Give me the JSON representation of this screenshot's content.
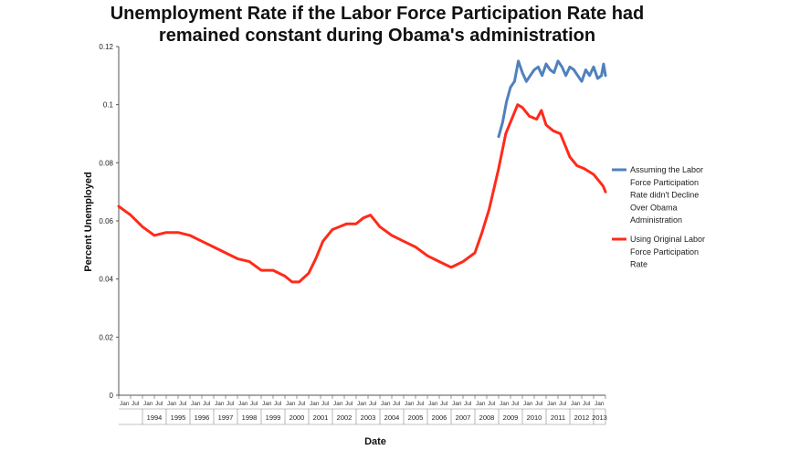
{
  "chart_data": {
    "type": "line",
    "title_lines": [
      "Unemployment Rate if the Labor Force Participation Rate had",
      "remained constant during Obama's administration"
    ],
    "xlabel": "Date",
    "ylabel": "Percent Unemployed",
    "ylim": [
      0,
      0.12
    ],
    "y_ticks": [
      "0",
      "0.02",
      "0.04",
      "0.06",
      "0.08",
      "0.1",
      "0.12"
    ],
    "x_range": [
      1993.0,
      2013.5
    ],
    "month_tick_labels": [
      "Jan",
      "Jul"
    ],
    "years": [
      "1994",
      "1995",
      "1996",
      "1997",
      "1998",
      "1999",
      "2000",
      "2001",
      "2002",
      "2003",
      "2004",
      "2005",
      "2006",
      "2007",
      "2008",
      "2009",
      "2010",
      "2011",
      "2012",
      "2013"
    ],
    "grid": false,
    "legend_position": "right",
    "series": [
      {
        "name": "Assuming the Labor Force Participation Rate didn't Decline Over Obama Administration",
        "legend_lines": [
          "Assuming the Labor",
          "Force Participation",
          "Rate didn't Decline",
          "Over Obama",
          "Administration"
        ],
        "color": "#4f81bd",
        "x": [
          2009.0,
          2009.17,
          2009.33,
          2009.5,
          2009.67,
          2009.83,
          2010.0,
          2010.17,
          2010.33,
          2010.5,
          2010.67,
          2010.83,
          2011.0,
          2011.17,
          2011.33,
          2011.5,
          2011.67,
          2011.83,
          2012.0,
          2012.17,
          2012.33,
          2012.5,
          2012.67,
          2012.83,
          2013.0,
          2013.17,
          2013.33,
          2013.42,
          2013.5
        ],
        "y": [
          0.089,
          0.094,
          0.101,
          0.106,
          0.108,
          0.115,
          0.111,
          0.108,
          0.11,
          0.112,
          0.113,
          0.11,
          0.114,
          0.112,
          0.111,
          0.115,
          0.113,
          0.11,
          0.113,
          0.112,
          0.11,
          0.108,
          0.112,
          0.11,
          0.113,
          0.109,
          0.11,
          0.114,
          0.11
        ]
      },
      {
        "name": "Using Original Labor Force Participation Rate",
        "legend_lines": [
          "Using Original Labor",
          "Force Participation",
          "Rate"
        ],
        "color": "#ff2a1a",
        "x": [
          1993.0,
          1993.5,
          1994.0,
          1994.5,
          1995.0,
          1995.5,
          1996.0,
          1996.5,
          1997.0,
          1997.5,
          1998.0,
          1998.5,
          1999.0,
          1999.5,
          2000.0,
          2000.3,
          2000.6,
          2001.0,
          2001.3,
          2001.6,
          2002.0,
          2002.3,
          2002.6,
          2003.0,
          2003.3,
          2003.6,
          2004.0,
          2004.5,
          2005.0,
          2005.5,
          2006.0,
          2006.5,
          2007.0,
          2007.5,
          2008.0,
          2008.3,
          2008.6,
          2009.0,
          2009.3,
          2009.6,
          2009.8,
          2010.0,
          2010.3,
          2010.6,
          2010.8,
          2011.0,
          2011.3,
          2011.6,
          2011.8,
          2012.0,
          2012.3,
          2012.6,
          2012.8,
          2013.0,
          2013.2,
          2013.4,
          2013.5
        ],
        "y": [
          0.065,
          0.062,
          0.058,
          0.055,
          0.056,
          0.056,
          0.055,
          0.053,
          0.051,
          0.049,
          0.047,
          0.046,
          0.043,
          0.043,
          0.041,
          0.039,
          0.039,
          0.042,
          0.047,
          0.053,
          0.057,
          0.058,
          0.059,
          0.059,
          0.061,
          0.062,
          0.058,
          0.055,
          0.053,
          0.051,
          0.048,
          0.046,
          0.044,
          0.046,
          0.049,
          0.056,
          0.064,
          0.078,
          0.09,
          0.096,
          0.1,
          0.099,
          0.096,
          0.095,
          0.098,
          0.093,
          0.091,
          0.09,
          0.086,
          0.082,
          0.079,
          0.078,
          0.077,
          0.076,
          0.074,
          0.072,
          0.07
        ]
      }
    ]
  }
}
